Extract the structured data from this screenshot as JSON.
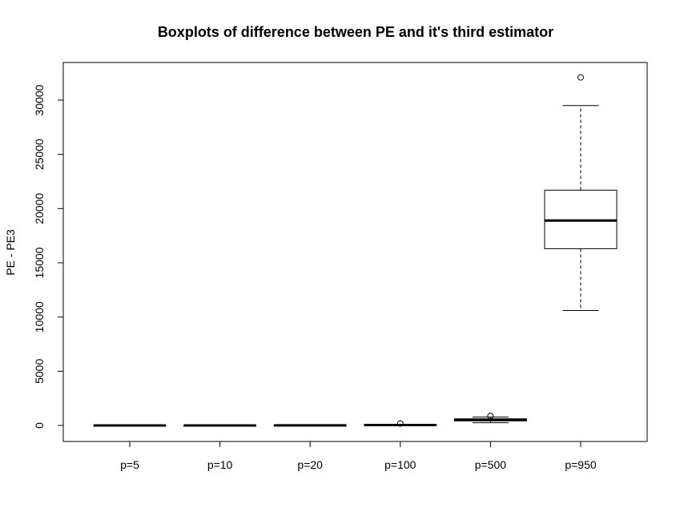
{
  "chart_data": {
    "type": "boxplot",
    "title": "Boxplots of difference between PE and it's third estimator",
    "xlabel": "",
    "ylabel": "PE - PE3",
    "ylim": [
      -1500,
      33000
    ],
    "yticks": [
      0,
      5000,
      10000,
      15000,
      20000,
      25000,
      30000
    ],
    "ytick_labels": [
      "0",
      "5000",
      "10000",
      "15000",
      "20000",
      "25000",
      "30000"
    ],
    "categories": [
      "p=5",
      "p=10",
      "p=20",
      "p=100",
      "p=500",
      "p=950"
    ],
    "boxes": [
      {
        "category": "p=5",
        "whisker_low": -20,
        "q1": -5,
        "median": 0,
        "q3": 5,
        "whisker_high": 20,
        "outliers": []
      },
      {
        "category": "p=10",
        "whisker_low": -20,
        "q1": -5,
        "median": 0,
        "q3": 5,
        "whisker_high": 20,
        "outliers": []
      },
      {
        "category": "p=20",
        "whisker_low": -15,
        "q1": 0,
        "median": 10,
        "q3": 20,
        "whisker_high": 35,
        "outliers": []
      },
      {
        "category": "p=100",
        "whisker_low": -20,
        "q1": 10,
        "median": 40,
        "q3": 70,
        "whisker_high": 100,
        "outliers": [
          180
        ]
      },
      {
        "category": "p=500",
        "whisker_low": 250,
        "q1": 420,
        "median": 530,
        "q3": 610,
        "whisker_high": 780,
        "outliers": [
          880
        ]
      },
      {
        "category": "p=950",
        "whisker_low": 10600,
        "q1": 16300,
        "median": 18900,
        "q3": 21700,
        "whisker_high": 29500,
        "outliers": [
          32100
        ]
      }
    ],
    "grid": false,
    "legend": "none"
  }
}
